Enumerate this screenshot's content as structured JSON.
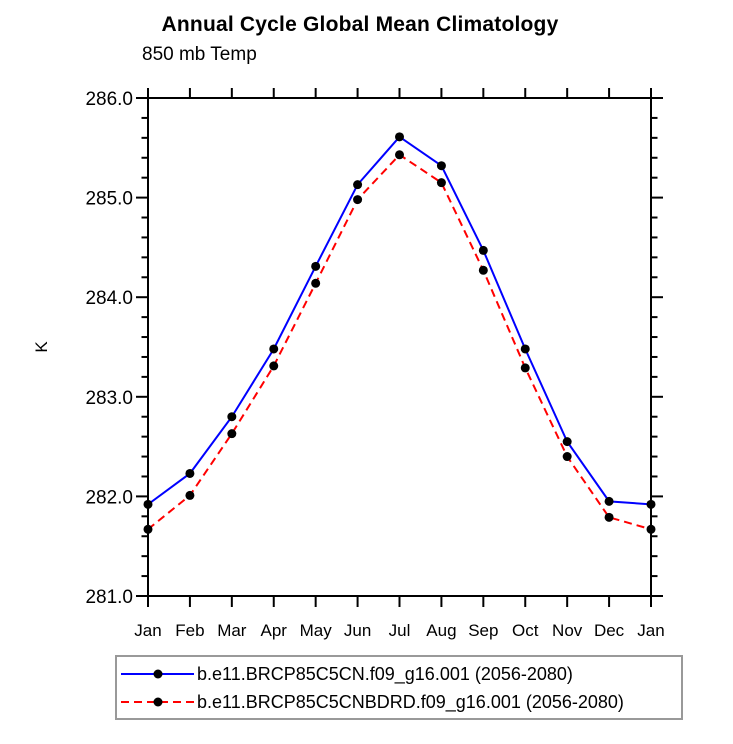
{
  "chart_data": {
    "type": "line",
    "title": "Annual Cycle Global Mean Climatology",
    "subtitle": "850 mb Temp",
    "xlabel": "",
    "ylabel": "K",
    "categories": [
      "Jan",
      "Feb",
      "Mar",
      "Apr",
      "May",
      "Jun",
      "Jul",
      "Aug",
      "Sep",
      "Oct",
      "Nov",
      "Dec",
      "Jan"
    ],
    "ylim": [
      281.0,
      286.0
    ],
    "ytick_step": 1.0,
    "ytick_minor_step": 0.2,
    "ytick_labels": [
      "281.0",
      "282.0",
      "283.0",
      "284.0",
      "285.0",
      "286.0"
    ],
    "grid": false,
    "legend_position": "bottom-box",
    "marker": "filled-circle",
    "series": [
      {
        "name": "b.e11.BRCP85C5CN.f09_g16.001 (2056-2080)",
        "color": "#0000ff",
        "style": "solid",
        "marker_color": "#000000",
        "values": [
          281.92,
          282.23,
          282.8,
          283.48,
          284.31,
          285.13,
          285.61,
          285.32,
          284.47,
          283.48,
          282.55,
          281.95,
          281.92
        ]
      },
      {
        "name": "b.e11.BRCP85C5CNBDRD.f09_g16.001 (2056-2080)",
        "color": "#ff0000",
        "style": "dashed",
        "marker_color": "#000000",
        "values": [
          281.67,
          282.01,
          282.63,
          283.31,
          284.14,
          284.98,
          285.43,
          285.15,
          284.27,
          283.29,
          282.4,
          281.79,
          281.67
        ]
      }
    ]
  },
  "colors": {
    "axis": "#000000",
    "text": "#000000",
    "legend_border": "#999999",
    "background": "#ffffff"
  }
}
